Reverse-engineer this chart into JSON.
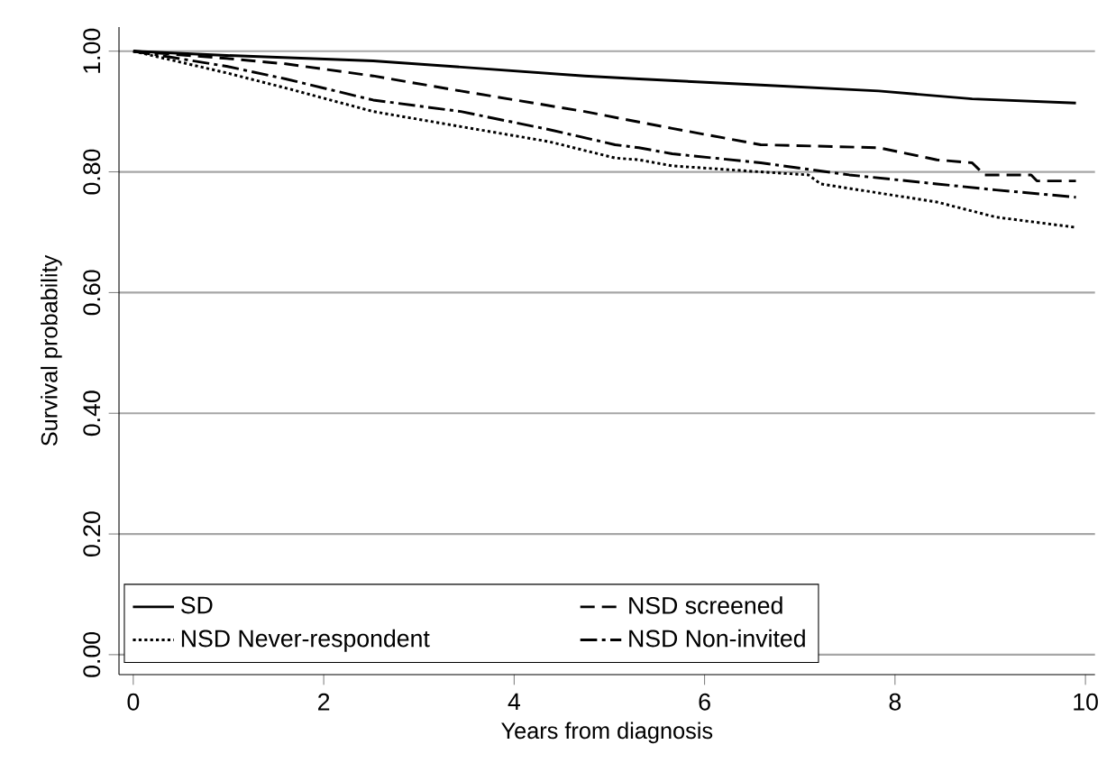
{
  "chart_data": {
    "type": "line",
    "xlabel": "Years from diagnosis",
    "ylabel": "Survival probability",
    "xlim": [
      -0.15,
      10.1
    ],
    "ylim": [
      -0.033,
      1.04
    ],
    "xticks": [
      0,
      2,
      4,
      6,
      8,
      10
    ],
    "yticks": [
      {
        "value": 0,
        "label": "0.00"
      },
      {
        "value": 0.2,
        "label": "0.20"
      },
      {
        "value": 0.4,
        "label": "0.40"
      },
      {
        "value": 0.6,
        "label": "0.60"
      },
      {
        "value": 0.8,
        "label": "0.80"
      },
      {
        "value": 1.0,
        "label": "1.00"
      }
    ],
    "grid": "y",
    "legend": "bottom",
    "series": [
      {
        "name": "SD",
        "color": "#000000",
        "line_style": "solid",
        "x": [
          0,
          0.98,
          2.52,
          4.74,
          5.31,
          6.59,
          7.83,
          8.81,
          9.9
        ],
        "values": [
          1.0,
          0.993,
          0.984,
          0.959,
          0.954,
          0.944,
          0.934,
          0.921,
          0.914
        ]
      },
      {
        "name": "NSD screened",
        "color": "#000000",
        "line_style": "dashed",
        "x": [
          0,
          0.98,
          1.6,
          2.52,
          3.44,
          4.74,
          5.66,
          6.59,
          7.83,
          8.44,
          8.81,
          8.94,
          9.43,
          9.49,
          9.9
        ],
        "values": [
          1.0,
          0.988,
          0.979,
          0.959,
          0.934,
          0.9,
          0.872,
          0.845,
          0.84,
          0.82,
          0.815,
          0.795,
          0.795,
          0.785,
          0.785
        ]
      },
      {
        "name": "NSD Never-respondent",
        "color": "#000000",
        "line_style": "dotted",
        "x": [
          0,
          0.98,
          1.6,
          2.52,
          3.44,
          4.37,
          5.06,
          5.31,
          5.66,
          6.59,
          7.09,
          7.22,
          7.83,
          8.44,
          9.06,
          9.9
        ],
        "values": [
          1.0,
          0.964,
          0.939,
          0.9,
          0.875,
          0.85,
          0.823,
          0.82,
          0.81,
          0.8,
          0.795,
          0.78,
          0.765,
          0.75,
          0.725,
          0.708
        ]
      },
      {
        "name": "NSD Non-invited",
        "color": "#000000",
        "line_style": "dashdot",
        "x": [
          0,
          0.98,
          1.6,
          2.52,
          3.44,
          4.37,
          5.06,
          5.31,
          5.66,
          6.59,
          7.52,
          8.44,
          9.06,
          9.9
        ],
        "values": [
          1.0,
          0.975,
          0.954,
          0.919,
          0.9,
          0.87,
          0.845,
          0.84,
          0.83,
          0.815,
          0.795,
          0.78,
          0.77,
          0.758
        ]
      }
    ]
  }
}
